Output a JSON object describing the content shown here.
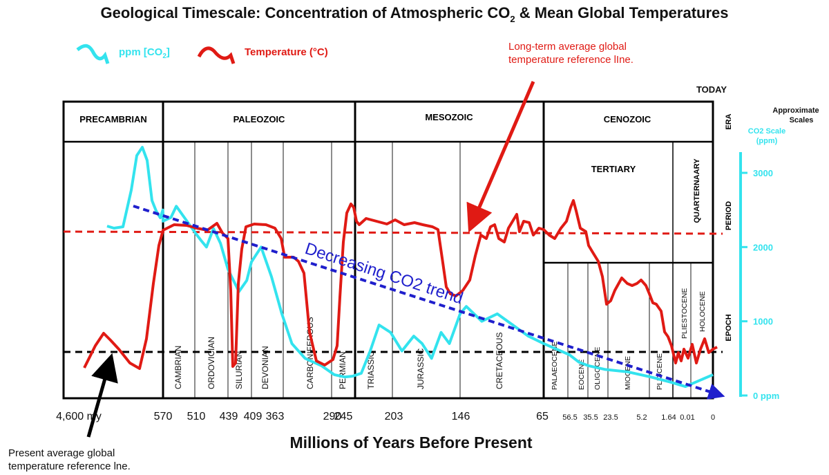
{
  "chart_data": {
    "type": "line",
    "title_main": "Geological Timescale: Concentration of Atmospheric CO",
    "title_sub": "2",
    "title_end": " & Mean Global Temperatures",
    "xlabel": "Millions of Years Before Present",
    "legend": [
      {
        "name_main": "ppm [CO",
        "name_sub": "2",
        "name_end": "]",
        "color": "#33e3ee"
      },
      {
        "name_main": "Temperature (°C)",
        "name_sub": "",
        "name_end": "",
        "color": "#e01a14"
      }
    ],
    "today_label": "TODAY",
    "row_labels": {
      "era": "ERA",
      "period": "PERIOD",
      "epoch": "EPOCH"
    },
    "eras": [
      "PRECAMBRIAN",
      "PALEOZOIC",
      "MESOZOIC",
      "CENOZOIC"
    ],
    "tertiary_label": "TERTIARY",
    "quaternary_label": "QUARTERNAARY",
    "periods": [
      "CAMBRIAN",
      "ORDOVICIAN",
      "SILURIAN",
      "DEVONIAN",
      "CARBONIFEROUS",
      "PERMIAN",
      "TRIASSIC",
      "JURASSIC",
      "CRETACEOUS"
    ],
    "epochs": [
      "PALAEOCENE",
      "EOCENE",
      "OLIGOCENE",
      "MIOCENE",
      "PLIOCENE",
      "PLIESTOCENE",
      "HOLOCENE"
    ],
    "x_ticks": [
      "4,600 my",
      "570",
      "510",
      "439",
      "409",
      "363",
      "290",
      "245",
      "203",
      "146",
      "65",
      "56.5",
      "35.5",
      "23.5",
      "5.2",
      "1.64",
      "0.01",
      "0"
    ],
    "co2_axis": {
      "header": [
        "Approximate",
        "Scales"
      ],
      "title": [
        "CO2 Scale",
        "(ppm)"
      ],
      "ticks": [
        "3000",
        "2000",
        "1000",
        "0 ppm"
      ],
      "tick_values": [
        3000,
        2000,
        1000,
        0
      ],
      "range": [
        0,
        3400
      ]
    },
    "annotations": {
      "trend": "Decreasing CO2 trend",
      "long_term_ref": [
        "Long-term average global",
        "temperature reference lIne."
      ],
      "present_ref": [
        "Present average global",
        "temperature reference lne."
      ]
    },
    "co2_ppm": [
      {
        "age": 600,
        "ppm": 2500
      },
      {
        "age": 585,
        "ppm": 2450
      },
      {
        "age": 570,
        "ppm": 2350
      },
      {
        "age": 555,
        "ppm": 2400
      },
      {
        "age": 545,
        "ppm": 2550
      },
      {
        "age": 530,
        "ppm": 2400
      },
      {
        "age": 510,
        "ppm": 2200
      },
      {
        "age": 498,
        "ppm": 2100
      },
      {
        "age": 485,
        "ppm": 2000
      },
      {
        "age": 470,
        "ppm": 2250
      },
      {
        "age": 455,
        "ppm": 2050
      },
      {
        "age": 439,
        "ppm": 1700
      },
      {
        "age": 425,
        "ppm": 1400
      },
      {
        "age": 415,
        "ppm": 1550
      },
      {
        "age": 409,
        "ppm": 1800
      },
      {
        "age": 395,
        "ppm": 2000
      },
      {
        "age": 380,
        "ppm": 1600
      },
      {
        "age": 365,
        "ppm": 1100
      },
      {
        "age": 350,
        "ppm": 700
      },
      {
        "age": 330,
        "ppm": 500
      },
      {
        "age": 305,
        "ppm": 400
      },
      {
        "age": 285,
        "ppm": 280
      },
      {
        "age": 265,
        "ppm": 250
      },
      {
        "age": 250,
        "ppm": 260
      },
      {
        "age": 238,
        "ppm": 300
      },
      {
        "age": 228,
        "ppm": 600
      },
      {
        "age": 218,
        "ppm": 950
      },
      {
        "age": 205,
        "ppm": 850
      },
      {
        "age": 195,
        "ppm": 600
      },
      {
        "age": 185,
        "ppm": 800
      },
      {
        "age": 178,
        "ppm": 700
      },
      {
        "age": 170,
        "ppm": 500
      },
      {
        "age": 162,
        "ppm": 850
      },
      {
        "age": 155,
        "ppm": 700
      },
      {
        "age": 146,
        "ppm": 1100
      },
      {
        "age": 140,
        "ppm": 1200
      },
      {
        "age": 125,
        "ppm": 1000
      },
      {
        "age": 110,
        "ppm": 1100
      },
      {
        "age": 95,
        "ppm": 950
      },
      {
        "age": 80,
        "ppm": 800
      },
      {
        "age": 65,
        "ppm": 700
      },
      {
        "age": 55,
        "ppm": 550
      },
      {
        "age": 45,
        "ppm": 450
      },
      {
        "age": 35,
        "ppm": 400
      },
      {
        "age": 25,
        "ppm": 350
      },
      {
        "age": 15,
        "ppm": 320
      },
      {
        "age": 5,
        "ppm": 250
      },
      {
        "age": 2,
        "ppm": 180
      },
      {
        "age": 0.5,
        "ppm": 120
      },
      {
        "age": 0,
        "ppm": 280
      }
    ],
    "temp_curve_vs_reference": [
      {
        "age": 4600,
        "level": "present"
      },
      {
        "age": 4500,
        "level": "above present"
      },
      {
        "age": 4300,
        "level": "present"
      },
      {
        "age": 4000,
        "level": "below present"
      },
      {
        "age": 570,
        "level": "long-term"
      },
      {
        "age": 500,
        "level": "long-term"
      },
      {
        "age": 439,
        "level": "below present"
      },
      {
        "age": 420,
        "level": "long-term"
      },
      {
        "age": 363,
        "level": "between"
      },
      {
        "age": 300,
        "level": "below present"
      },
      {
        "age": 290,
        "level": "present"
      },
      {
        "age": 250,
        "level": "above long-term"
      },
      {
        "age": 146,
        "level": "between"
      },
      {
        "age": 100,
        "level": "long-term"
      },
      {
        "age": 65,
        "level": "long-term"
      },
      {
        "age": 50,
        "level": "above long-term"
      },
      {
        "age": 30,
        "level": "between"
      },
      {
        "age": 10,
        "level": "between"
      },
      {
        "age": 1,
        "level": "present"
      },
      {
        "age": 0,
        "level": "present"
      }
    ]
  }
}
